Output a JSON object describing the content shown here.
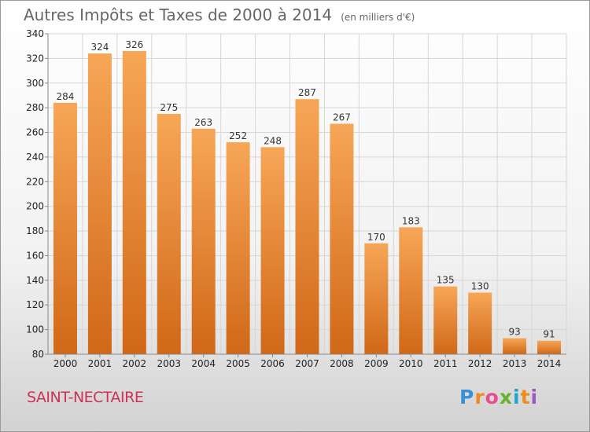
{
  "title": "Autres Impôts et Taxes de 2000 à 2014",
  "subtitle": "(en milliers d'€)",
  "city": "SAINT-NECTAIRE",
  "brand": {
    "letters": [
      "P",
      "r",
      "o",
      "x",
      "i",
      "t",
      "i"
    ],
    "letter_colors": [
      "#3b8fd6",
      "#ef8a1c",
      "#e94d8c",
      "#64b32e",
      "#1fa7c9",
      "#ef8a1c",
      "#9f57c7"
    ]
  },
  "colors": {
    "bar_top": "#f7a657",
    "bar_bottom": "#d06818",
    "grid": "#d6d6d6",
    "axis": "#888888",
    "city": "#cc3355"
  },
  "chart_data": {
    "type": "bar",
    "title": "Autres Impôts et Taxes de 2000 à 2014",
    "subtitle": "(en milliers d'€)",
    "categories": [
      "2000",
      "2001",
      "2002",
      "2003",
      "2004",
      "2005",
      "2006",
      "2007",
      "2008",
      "2009",
      "2010",
      "2011",
      "2012",
      "2013",
      "2014"
    ],
    "values": [
      284,
      324,
      326,
      275,
      263,
      252,
      248,
      287,
      267,
      170,
      183,
      135,
      130,
      93,
      91
    ],
    "ylim": [
      80,
      340
    ],
    "yticks": [
      80,
      100,
      120,
      140,
      160,
      180,
      200,
      220,
      240,
      260,
      280,
      300,
      320,
      340
    ],
    "grid": true
  }
}
